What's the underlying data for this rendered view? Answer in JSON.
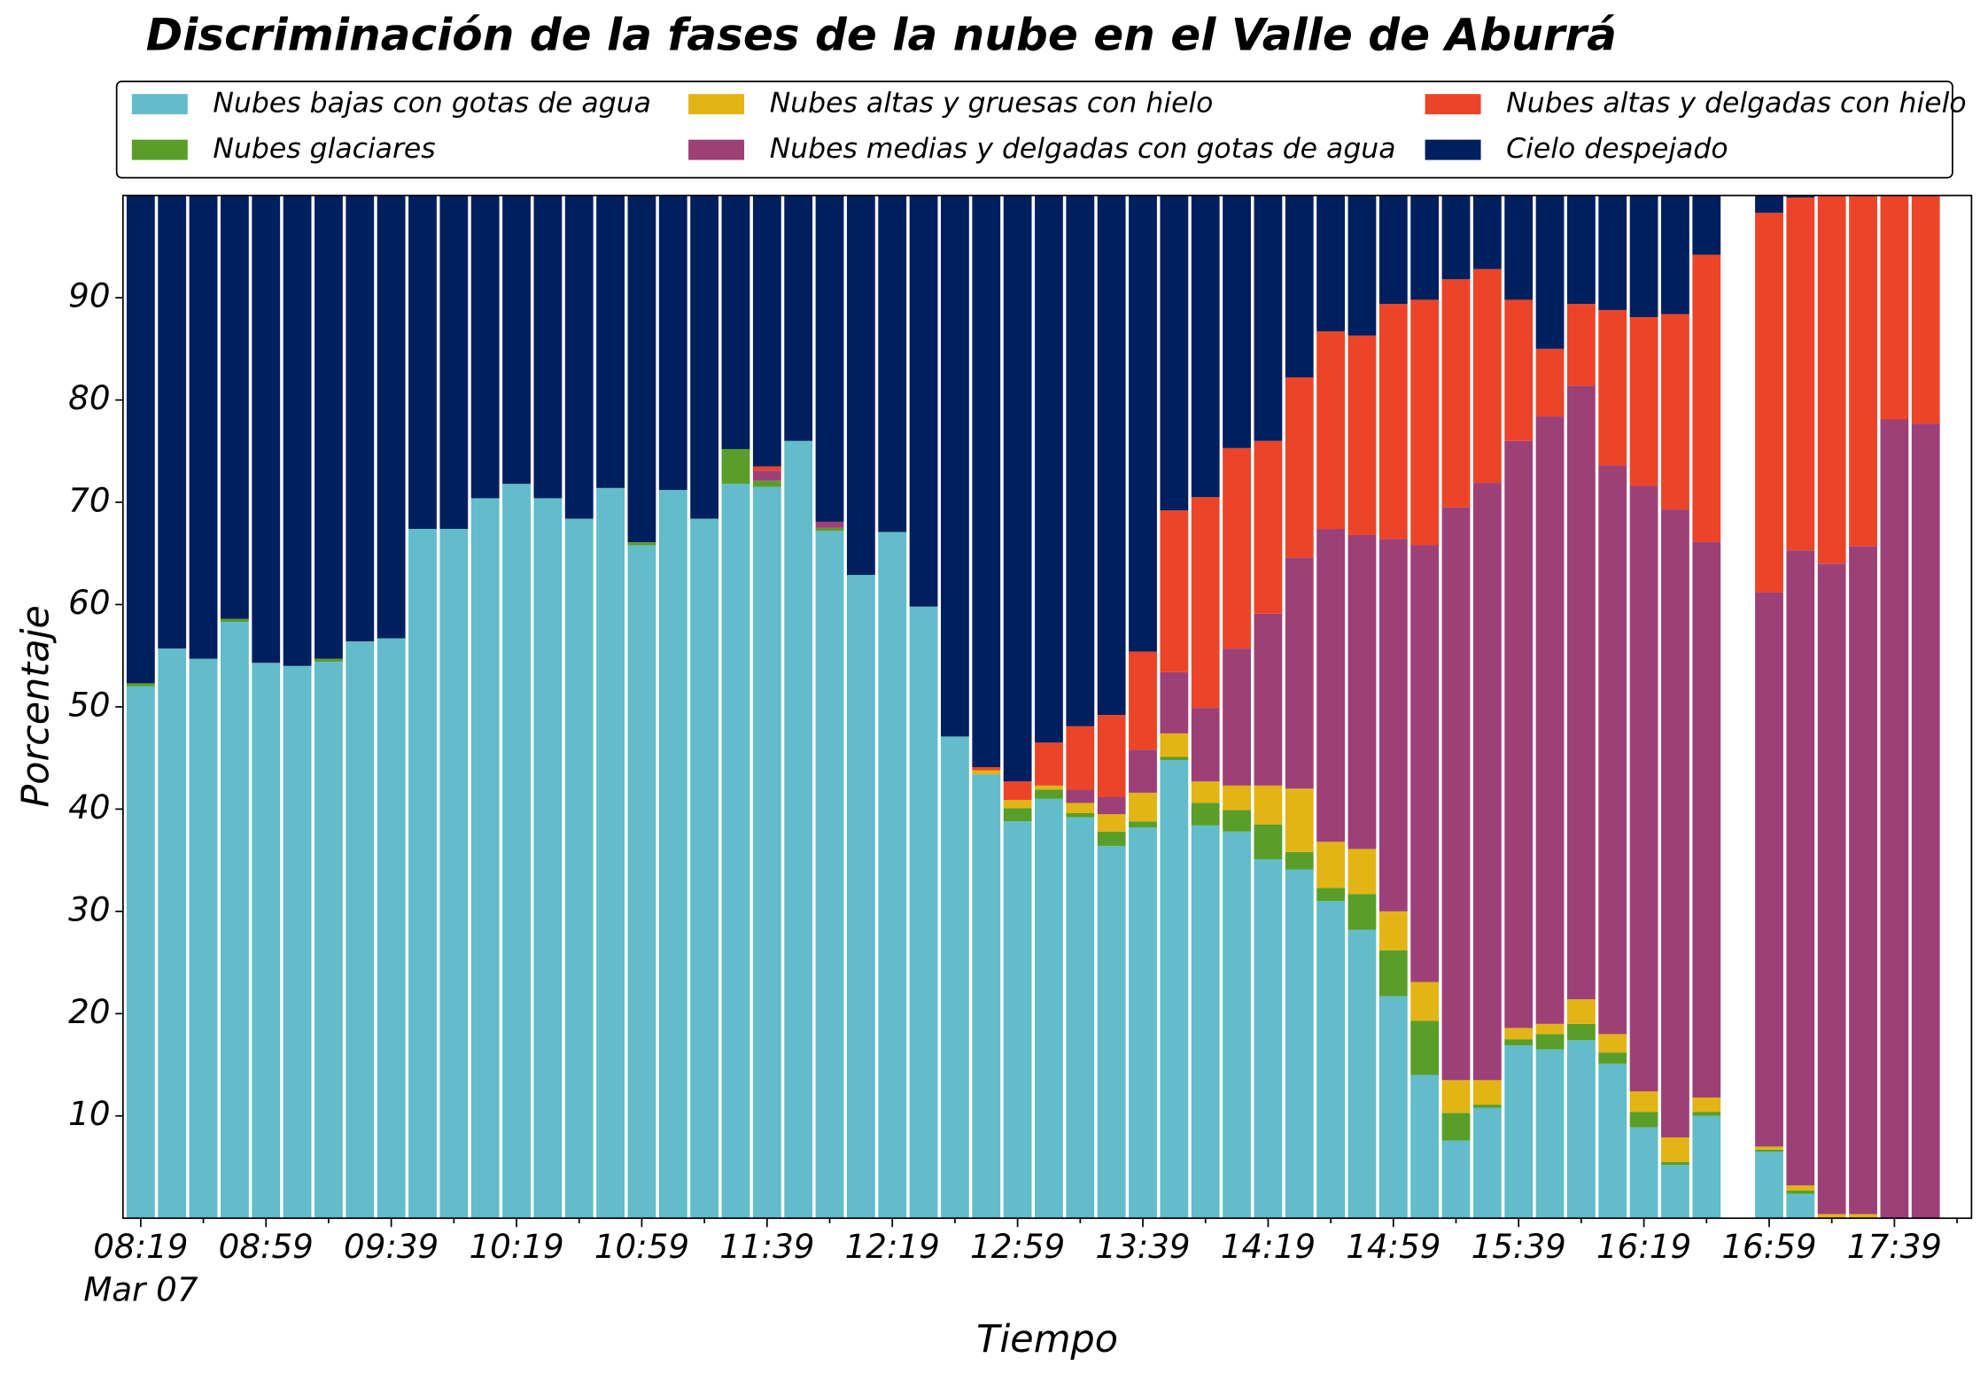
{
  "chart_data": {
    "type": "stacked_bar",
    "title": "Discriminación de la fases de la nube en el Valle de Aburrá",
    "x_label": "Tiempo",
    "y_label": "Porcentaje",
    "date_label": "Mar 07",
    "categories": [
      "08:19",
      null,
      null,
      null,
      "08:59",
      null,
      null,
      null,
      "09:39",
      null,
      null,
      null,
      "10:19",
      null,
      null,
      null,
      "10:59",
      null,
      null,
      null,
      "11:39",
      null,
      null,
      null,
      "12:19",
      null,
      null,
      null,
      "12:59",
      null,
      null,
      null,
      "13:39",
      null,
      null,
      null,
      "14:19",
      null,
      null,
      null,
      "14:59",
      null,
      null,
      null,
      "15:39",
      null,
      null,
      null,
      "16:19",
      null,
      null,
      null,
      "16:59",
      null,
      null,
      null,
      "17:39",
      null
    ],
    "ylim": [
      0,
      100
    ],
    "yticks": [
      10,
      20,
      30,
      40,
      50,
      60,
      70,
      80,
      90
    ],
    "legend": "top",
    "series": [
      {
        "name": "Nubes bajas con gotas de agua",
        "color": "#62bcc9",
        "values": [
          52,
          55.7,
          54.7,
          58.3,
          54.3,
          54,
          54.4,
          56.4,
          56.7,
          67.4,
          67.4,
          70.4,
          71.8,
          70.4,
          68.4,
          71.4,
          65.8,
          71.2,
          68.4,
          71.8,
          71.5,
          76,
          67.2,
          62.9,
          67.1,
          59.8,
          47.1,
          43.4,
          38.8,
          41,
          39.2,
          36.4,
          38.2,
          44.8,
          38.4,
          37.8,
          35.1,
          34.1,
          31,
          28.2,
          21.7,
          14,
          7.6,
          10.8,
          16.9,
          16.5,
          17.4,
          15.1,
          8.9,
          5.2,
          10,
          null,
          6.5,
          2.4,
          0,
          0,
          0,
          0
        ]
      },
      {
        "name": "Nubes glaciares",
        "color": "#5a9e2a",
        "values": [
          0.3,
          0,
          0,
          0.3,
          0,
          0,
          0.3,
          0,
          0,
          0,
          0,
          0,
          0,
          0,
          0,
          0,
          0.3,
          0,
          0,
          3.4,
          0.6,
          0,
          0.3,
          0,
          0,
          0,
          0,
          0,
          1.3,
          0.9,
          0.4,
          1.4,
          0.6,
          0.3,
          2.2,
          2.1,
          3.4,
          1.7,
          1.3,
          3.5,
          4.5,
          5.3,
          2.7,
          0.3,
          0.6,
          1.5,
          1.6,
          1.1,
          1.5,
          0.3,
          0.4,
          null,
          0.2,
          0.3,
          0,
          0,
          0,
          0
        ]
      },
      {
        "name": "Nubes altas y gruesas con hielo",
        "color": "#e3b416",
        "values": [
          0,
          0,
          0,
          0,
          0,
          0,
          0,
          0,
          0,
          0,
          0,
          0,
          0,
          0,
          0,
          0,
          0,
          0,
          0,
          0,
          0,
          0,
          0,
          0,
          0,
          0,
          0,
          0.4,
          0.8,
          0.4,
          1,
          1.7,
          2.8,
          2.3,
          2.1,
          2.4,
          3.8,
          6.2,
          4.5,
          4.4,
          3.8,
          3.8,
          3.2,
          2.4,
          1.1,
          1,
          2.4,
          1.8,
          2,
          2.4,
          1.4,
          null,
          0.3,
          0.5,
          0.4,
          0.4,
          0,
          0
        ]
      },
      {
        "name": "Nubes medias y delgadas con gotas de agua",
        "color": "#9e4078",
        "values": [
          0,
          0,
          0,
          0,
          0,
          0,
          0,
          0,
          0,
          0,
          0,
          0,
          0,
          0,
          0,
          0,
          0,
          0,
          0,
          0,
          1,
          0,
          0.6,
          0,
          0,
          0,
          0,
          0,
          0,
          0,
          1.3,
          1.7,
          4.2,
          6,
          7.2,
          13.4,
          16.8,
          22.6,
          30.6,
          30.7,
          36.4,
          42.7,
          56,
          58.4,
          57.4,
          59.4,
          60,
          55.6,
          59.2,
          61.4,
          54.3,
          null,
          54.2,
          62.1,
          63.6,
          65.3,
          78.1,
          77.7
        ]
      },
      {
        "name": "Nubes altas y delgadas con hielo",
        "color": "#ec4428",
        "values": [
          0,
          0,
          0,
          0,
          0,
          0,
          0,
          0,
          0,
          0,
          0,
          0,
          0,
          0,
          0,
          0,
          0,
          0,
          0,
          0,
          0.4,
          0,
          0,
          0,
          0,
          0,
          0,
          0.3,
          1.8,
          4.2,
          6.2,
          8,
          9.6,
          15.8,
          20.6,
          19.6,
          16.9,
          17.6,
          19.3,
          19.5,
          23,
          24,
          22.3,
          20.9,
          13.8,
          6.6,
          8,
          15.2,
          16.5,
          19.1,
          28.1,
          null,
          37.1,
          34.5,
          36,
          34.3,
          21.9,
          22.3
        ]
      },
      {
        "name": "Cielo despejado",
        "color": "#001f5e",
        "values": [
          47.7,
          44.3,
          45.3,
          41.4,
          45.7,
          46,
          45.3,
          43.6,
          43.3,
          32.6,
          32.6,
          29.6,
          28.2,
          29.6,
          31.6,
          28.6,
          33.9,
          28.8,
          31.6,
          24.8,
          26.5,
          24,
          31.9,
          37.1,
          32.9,
          40.2,
          52.9,
          55.9,
          57.3,
          53.5,
          51.9,
          50.8,
          44.6,
          30.8,
          29.5,
          24.7,
          24,
          17.8,
          13.3,
          13.7,
          10.6,
          10.2,
          8.2,
          7.2,
          10.2,
          15,
          10.6,
          11.2,
          11.9,
          11.6,
          5.8,
          null,
          1.7,
          0.2,
          0,
          0,
          0,
          0
        ]
      }
    ]
  }
}
